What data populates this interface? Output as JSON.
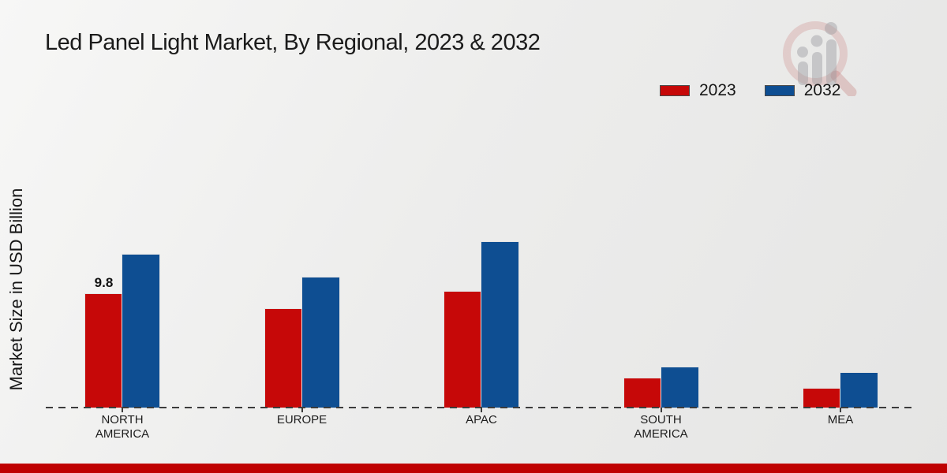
{
  "chart_data": {
    "type": "bar",
    "title": "Led Panel Light Market, By Regional, 2023 & 2032",
    "ylabel": "Market Size in USD Billion",
    "xlabel": "",
    "categories": [
      "NORTH AMERICA",
      "EUROPE",
      "APAC",
      "SOUTH AMERICA",
      "MEA"
    ],
    "series": [
      {
        "name": "2023",
        "color": "#c60808",
        "values": [
          9.8,
          8.5,
          10.0,
          2.5,
          1.6
        ]
      },
      {
        "name": "2032",
        "color": "#0e4e92",
        "values": [
          13.2,
          11.2,
          14.3,
          3.5,
          3.0
        ]
      }
    ],
    "annotations": [
      {
        "series_index": 0,
        "category_index": 0,
        "text": "9.8"
      }
    ],
    "ylim": [
      0,
      15
    ],
    "grid": false,
    "legend_position": "top-right",
    "baseline_style": "dashed",
    "y_axis_ticks_visible": false
  },
  "colors": {
    "series_2023": "#c60808",
    "series_2032": "#0e4e92",
    "footer_strip": "#bf0101",
    "baseline": "#3c3c3c",
    "background": "#ececec"
  }
}
